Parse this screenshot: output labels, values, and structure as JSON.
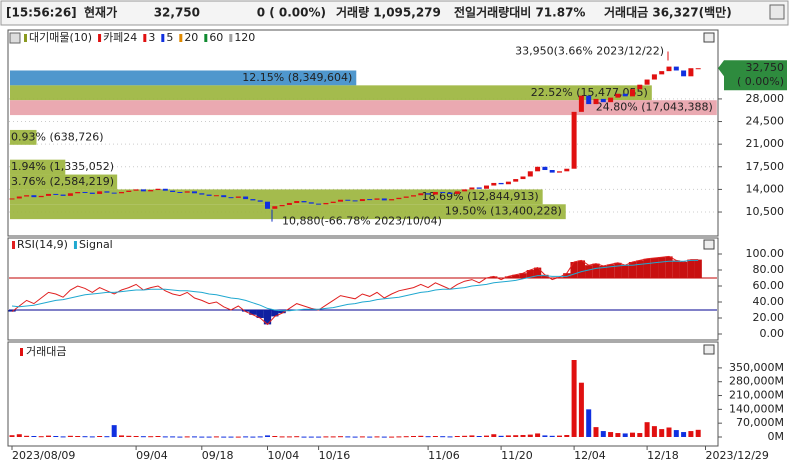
{
  "header": {
    "time": "[15:56:26]",
    "label": "현재가",
    "price": "32,750",
    "change": "0 ( 0.00%)",
    "volume": "거래량 1,095,279",
    "ratio": "전일거래량대비 71.87%",
    "amount": "거래대금 36,327(백만)"
  },
  "chart_data": [
    {
      "type": "candlestick",
      "legend": [
        {
          "name": "대기매물(10)",
          "color": "#8a9a20"
        },
        {
          "name": "카페24",
          "color": "#e01010"
        },
        {
          "name": "3",
          "color": "#e01010"
        },
        {
          "name": "5",
          "color": "#1030e0"
        },
        {
          "name": "20",
          "color": "#e08a00"
        },
        {
          "name": "60",
          "color": "#108a30"
        },
        {
          "name": "120",
          "color": "#a0a0a0"
        }
      ],
      "up_color": "#e01010",
      "down_color": "#1030e0",
      "values": [
        12600,
        12900,
        13100,
        12800,
        13000,
        13300,
        13200,
        13000,
        13400,
        13600,
        13500,
        13300,
        13700,
        13500,
        13400,
        13600,
        13800,
        14000,
        13700,
        13900,
        14100,
        13800,
        13600,
        13500,
        13700,
        13400,
        13200,
        13000,
        13100,
        12800,
        12700,
        12900,
        12500,
        12300,
        12100,
        11000,
        11400,
        11600,
        11900,
        12200,
        12000,
        11800,
        11700,
        11900,
        12100,
        12400,
        12300,
        12200,
        12500,
        12400,
        12600,
        12300,
        12500,
        12700,
        12900,
        13100,
        13400,
        13200,
        13600,
        13500,
        13300,
        13700,
        14000,
        14300,
        14100,
        14600,
        15000,
        14800,
        15200,
        15600,
        16000,
        16800,
        17500,
        17000,
        16600,
        16800,
        17200,
        26000,
        28500,
        27200,
        28000,
        27500,
        28200,
        28800,
        28400,
        29500,
        30200,
        31000,
        31800,
        32300,
        33000,
        32400,
        31500,
        32750,
        32750,
        null
      ],
      "ylim": [
        7100,
        38200
      ],
      "yticks": [
        {
          "value": 10500,
          "label": "10,500"
        },
        {
          "value": 14000,
          "label": "14,000"
        },
        {
          "value": 17500,
          "label": "17,500"
        },
        {
          "value": 21000,
          "label": "21,000"
        },
        {
          "value": 24500,
          "label": "24,500"
        },
        {
          "value": 28000,
          "label": "28,000"
        }
      ],
      "grid": true,
      "current": {
        "value": 32750,
        "label": "32,750",
        "change": "( 0.00%)",
        "color": "#2e8b3e"
      },
      "annotations": [
        {
          "label": "33,950(3.66% 2023/12/22)",
          "value": 33950,
          "color": "#e01010"
        },
        {
          "label": "10,880(-66.78% 2023/10/04)",
          "value": 10880,
          "color": "#1030c0"
        }
      ],
      "profile": {
        "ranges": [
          [
            30100,
            32400
          ],
          [
            27800,
            30100
          ],
          [
            25500,
            27800
          ],
          [
            20900,
            23200
          ],
          [
            16300,
            18600
          ],
          [
            14000,
            16300
          ],
          [
            11700,
            14000
          ],
          [
            9400,
            11700
          ]
        ],
        "values": [
          12.15,
          22.52,
          24.8,
          0.93,
          1.94,
          3.76,
          18.69,
          19.5
        ],
        "value_labels": [
          "12.15% (8,349,604)",
          "22.52% (15,477,055)",
          "24.80% (17,043,388)",
          "0.93% (638,726)",
          "1.94% (1,335,052)",
          "3.76% (2,584,219)",
          "18.69% (12,844,913)",
          "19.50% (13,400,228)"
        ],
        "colors": [
          "#3c8cc8",
          "#9ab43a",
          "#e8a0a8",
          "#9ab43a",
          "#9ab43a",
          "#9ab43a",
          "#9ab43a",
          "#9ab43a"
        ]
      }
    },
    {
      "type": "line",
      "series": [
        {
          "name": "RSI(14,9)",
          "color": "#e02020",
          "values": [
            28,
            35,
            42,
            38,
            45,
            52,
            50,
            46,
            55,
            60,
            57,
            52,
            58,
            54,
            50,
            55,
            58,
            62,
            55,
            58,
            60,
            54,
            50,
            48,
            52,
            45,
            42,
            38,
            40,
            34,
            30,
            35,
            28,
            24,
            20,
            12,
            22,
            26,
            32,
            38,
            35,
            32,
            30,
            36,
            42,
            48,
            46,
            44,
            50,
            47,
            52,
            45,
            50,
            54,
            56,
            58,
            62,
            58,
            64,
            60,
            56,
            62,
            66,
            68,
            64,
            70,
            72,
            68,
            72,
            74,
            76,
            80,
            83,
            74,
            68,
            71,
            76,
            90,
            92,
            86,
            88,
            85,
            87,
            89,
            86,
            90,
            92,
            94,
            95,
            96,
            97,
            92,
            90,
            93,
            93,
            null
          ]
        },
        {
          "name": "Signal",
          "color": "#20a8d0",
          "values": [
            35,
            34,
            35,
            36,
            38,
            40,
            42,
            43,
            45,
            47,
            49,
            50,
            51,
            52,
            52,
            53,
            54,
            55,
            55,
            56,
            56,
            56,
            55,
            54,
            54,
            53,
            52,
            50,
            49,
            47,
            45,
            44,
            42,
            39,
            36,
            32,
            30,
            29,
            29,
            30,
            31,
            31,
            31,
            32,
            33,
            35,
            37,
            38,
            40,
            41,
            43,
            44,
            45,
            46,
            48,
            50,
            52,
            53,
            55,
            56,
            56,
            57,
            58,
            60,
            61,
            62,
            64,
            65,
            66,
            67,
            69,
            71,
            73,
            73,
            72,
            72,
            72,
            75,
            78,
            80,
            82,
            83,
            84,
            85,
            86,
            86,
            87,
            88,
            89,
            90,
            91,
            91,
            91,
            92,
            92,
            null
          ]
        }
      ],
      "levels": [
        {
          "value": 70,
          "color": "#c00000"
        },
        {
          "value": 30,
          "color": "#000090"
        }
      ],
      "ylim": [
        -5,
        117.5
      ],
      "yticks": [
        {
          "value": 0,
          "label": "0.00"
        },
        {
          "value": 20,
          "label": "20.00"
        },
        {
          "value": 40,
          "label": "40.00"
        },
        {
          "value": 60,
          "label": "60.00"
        },
        {
          "value": 80,
          "label": "80.00"
        },
        {
          "value": 100,
          "label": "100.00"
        }
      ]
    },
    {
      "type": "bar",
      "title": "거래대금",
      "categories": [
        "2023/08/09",
        null,
        null,
        null,
        null,
        null,
        null,
        null,
        null,
        null,
        null,
        null,
        null,
        null,
        null,
        null,
        null,
        "09/04",
        null,
        null,
        null,
        null,
        null,
        null,
        null,
        null,
        "09/18",
        null,
        null,
        null,
        null,
        null,
        null,
        null,
        null,
        "10/04",
        null,
        null,
        null,
        null,
        null,
        null,
        "10/16",
        null,
        null,
        null,
        null,
        null,
        null,
        null,
        null,
        null,
        null,
        null,
        null,
        null,
        null,
        "11/06",
        null,
        null,
        null,
        null,
        null,
        null,
        null,
        null,
        null,
        "11/20",
        null,
        null,
        null,
        null,
        null,
        null,
        null,
        null,
        null,
        "12/04",
        null,
        null,
        null,
        null,
        null,
        null,
        null,
        null,
        null,
        "12/18",
        null,
        null,
        null,
        null,
        null,
        null,
        null,
        "2023/12/29"
      ],
      "values": [
        9000,
        14000,
        6000,
        5000,
        4000,
        7000,
        5000,
        3000,
        6000,
        5000,
        4000,
        3000,
        5000,
        4000,
        60000,
        8000,
        6000,
        5000,
        4000,
        4000,
        5000,
        3000,
        3000,
        2000,
        3000,
        3000,
        2000,
        2000,
        3000,
        2000,
        2000,
        2000,
        3000,
        2000,
        3000,
        8000,
        5000,
        3000,
        3000,
        4000,
        2000,
        2000,
        2000,
        3000,
        3000,
        4000,
        3000,
        2000,
        3000,
        2000,
        3000,
        2000,
        2000,
        3000,
        4000,
        5000,
        6000,
        4000,
        5000,
        4000,
        3000,
        5000,
        6000,
        8000,
        5000,
        7000,
        14000,
        6000,
        8000,
        9000,
        10000,
        12000,
        18000,
        8000,
        6000,
        7000,
        10000,
        390000,
        275000,
        140000,
        50000,
        30000,
        25000,
        20000,
        18000,
        22000,
        20000,
        75000,
        55000,
        40000,
        48000,
        35000,
        25000,
        30000,
        36327,
        null
      ],
      "ylim": [
        -40580,
        466000
      ],
      "yticks": [
        {
          "value": 0,
          "label": "0M"
        },
        {
          "value": 70000,
          "label": "70,000M"
        },
        {
          "value": 140000,
          "label": "140,000M"
        },
        {
          "value": 210000,
          "label": "210,000M"
        },
        {
          "value": 280000,
          "label": "280,000M"
        },
        {
          "value": 350000,
          "label": "350,000M"
        }
      ]
    }
  ]
}
